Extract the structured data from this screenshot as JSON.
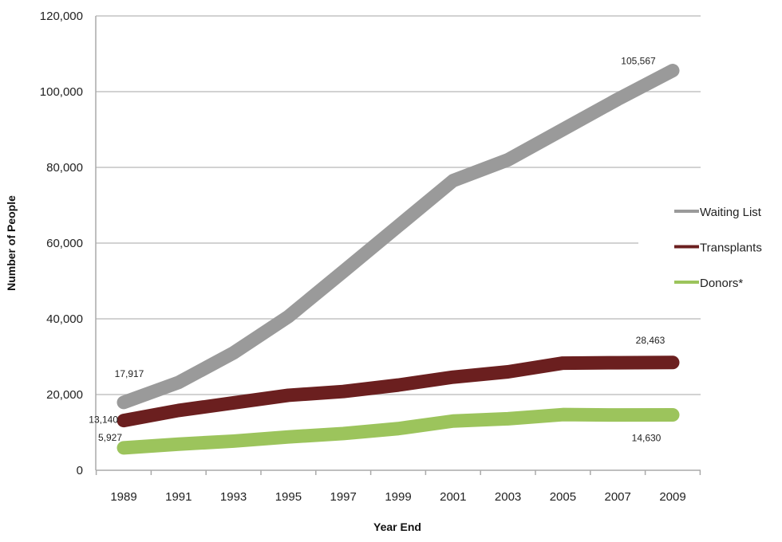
{
  "chart_data": {
    "type": "line",
    "title": "",
    "xlabel": "Year End",
    "ylabel": "Number of People",
    "ylim": [
      0,
      120000
    ],
    "yticks": [
      "0",
      "20,000",
      "40,000",
      "60,000",
      "80,000",
      "100,000",
      "120,000"
    ],
    "ytick_values": [
      0,
      20000,
      40000,
      60000,
      80000,
      100000,
      120000
    ],
    "categories": [
      "1989",
      "1991",
      "1993",
      "1995",
      "1997",
      "1999",
      "2001",
      "2003",
      "2005",
      "2007",
      "2009"
    ],
    "grid": true,
    "legend_position": "right",
    "series": [
      {
        "name": "Waiting List",
        "color": "#9a9a9a",
        "values": [
          17917,
          23200,
          31000,
          40600,
          52500,
          64500,
          76500,
          82000,
          90000,
          98000,
          105567
        ]
      },
      {
        "name": "Transplants",
        "color": "#6b1f1f",
        "values": [
          13140,
          15800,
          17800,
          19800,
          20800,
          22500,
          24600,
          26000,
          28300,
          28400,
          28463
        ]
      },
      {
        "name": "Donors*",
        "color": "#9cc45c",
        "values": [
          5927,
          6900,
          7700,
          8800,
          9700,
          11000,
          13000,
          13600,
          14700,
          14600,
          14630
        ]
      }
    ],
    "data_labels": [
      {
        "series": 0,
        "index": 0,
        "text": "17,917"
      },
      {
        "series": 0,
        "index": 10,
        "text": "105,567"
      },
      {
        "series": 1,
        "index": 0,
        "text": "13,140"
      },
      {
        "series": 1,
        "index": 10,
        "text": "28,463"
      },
      {
        "series": 2,
        "index": 0,
        "text": "5,927"
      },
      {
        "series": 2,
        "index": 10,
        "text": "14,630"
      }
    ]
  }
}
